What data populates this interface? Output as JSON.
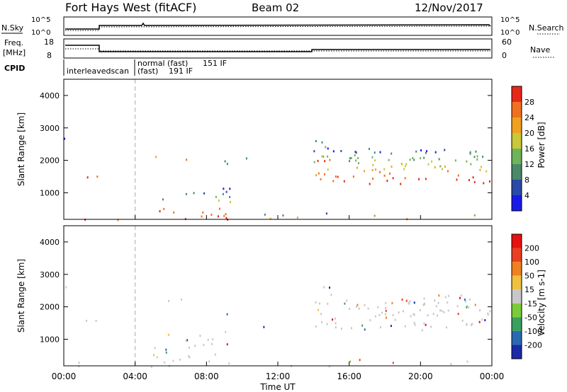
{
  "header": {
    "title": "Fort Hays West (fitACF)",
    "beam": "Beam 02",
    "date": "12/Nov/2017"
  },
  "strip": {
    "nsky_label": "N.Sky",
    "nsearch_label": "N.Search",
    "freq_label_1": "Freq.",
    "freq_label_2": "[MHz]",
    "nave_label": "Nave",
    "cpid_label": "CPID",
    "noise_ticks": [
      "10^5",
      "10^0"
    ],
    "freq_ticks": [
      "18",
      "8"
    ],
    "nave_ticks": [
      "60",
      "0"
    ],
    "cpid_1": "interleavedscan",
    "cpid_2a": "normal (fast)",
    "cpid_2b": "151 IF",
    "cpid_3a": "(fast)",
    "cpid_3b": "191 IF"
  },
  "chart_data": [
    {
      "type": "heatmap",
      "name": "power",
      "ylabel": "Slant Range [km]",
      "yticks": [
        "4000",
        "3000",
        "2000",
        "1000"
      ],
      "colorbar_label": "Power [dB]",
      "colorbar_ticks": [
        "28",
        "24",
        "20",
        "16",
        "12",
        "8",
        "4"
      ],
      "colors": [
        "#1a1ae6",
        "#2a4aa8",
        "#4a8a6a",
        "#6fb45a",
        "#c8c83a",
        "#f0a020",
        "#f07020",
        "#e82818"
      ],
      "ylim": [
        180,
        4500
      ],
      "xlim": [
        0,
        24
      ]
    },
    {
      "type": "heatmap",
      "name": "velocity",
      "ylabel": "Slant Range [km]",
      "yticks": [
        "4000",
        "3000",
        "2000",
        "1000"
      ],
      "colorbar_label": "Velocity [m s-1]",
      "colorbar_ticks": [
        "200",
        "100",
        "50",
        "15",
        "-15",
        "-50",
        "-100",
        "-200"
      ],
      "colors": [
        "#1a2aa8",
        "#2a6ab0",
        "#3aa060",
        "#7ccc3a",
        "#c8c8c8",
        "#f0c040",
        "#f08020",
        "#e84020",
        "#e81010"
      ],
      "ylim": [
        180,
        4500
      ],
      "xlim": [
        0,
        24
      ]
    }
  ],
  "xaxis": {
    "label": "Time UT",
    "ticks": [
      "00:00",
      "04:00",
      "08:00",
      "12:00",
      "16:00",
      "20:00",
      "00:00"
    ]
  }
}
